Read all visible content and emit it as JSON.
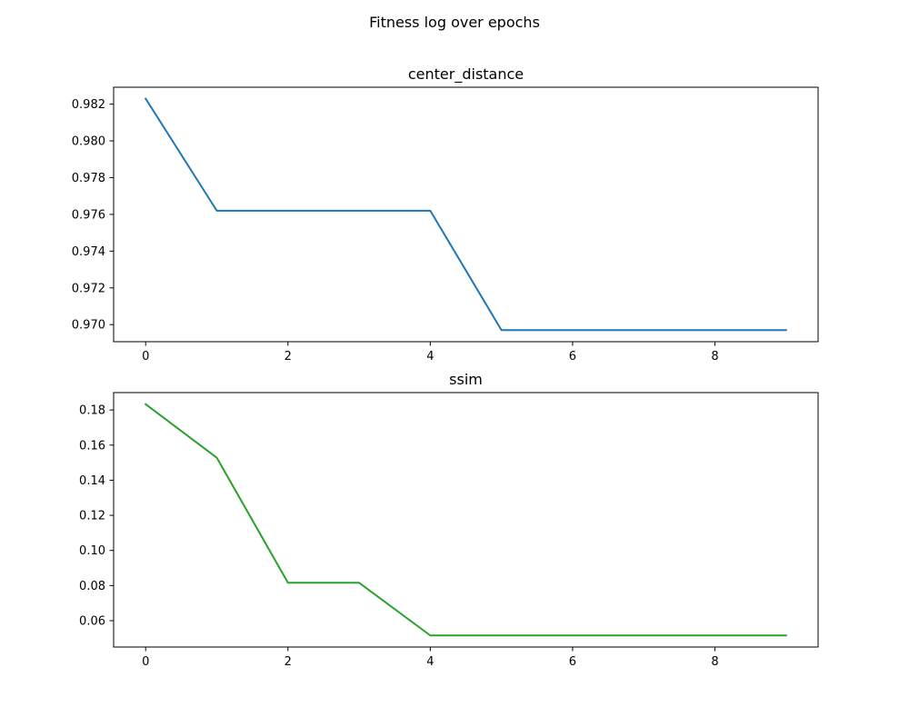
{
  "figure": {
    "title": "Fitness log over epochs"
  },
  "chart_data": [
    {
      "type": "line",
      "title": "center_distance",
      "xlabel": "",
      "ylabel": "",
      "x": [
        0,
        1,
        2,
        3,
        4,
        5,
        6,
        7,
        8,
        9
      ],
      "series": [
        {
          "color": "#1f77b4",
          "values": [
            0.9823,
            0.9762,
            0.9762,
            0.9762,
            0.9762,
            0.9697,
            0.9697,
            0.9697,
            0.9697,
            0.9697
          ]
        }
      ],
      "xlim": [
        -0.45,
        9.45
      ],
      "ylim": [
        0.96907,
        0.98292
      ],
      "xticks": [
        0,
        2,
        4,
        6,
        8
      ],
      "yticks": [
        0.97,
        0.972,
        0.974,
        0.976,
        0.978,
        0.98,
        0.982
      ],
      "xtick_labels": [
        "0",
        "2",
        "4",
        "6",
        "8"
      ],
      "ytick_labels": [
        "0.970",
        "0.972",
        "0.974",
        "0.976",
        "0.978",
        "0.980",
        "0.982"
      ],
      "grid": false,
      "legend": "none"
    },
    {
      "type": "line",
      "title": "ssim",
      "xlabel": "",
      "ylabel": "",
      "x": [
        0,
        1,
        2,
        3,
        4,
        5,
        6,
        7,
        8,
        9
      ],
      "series": [
        {
          "color": "#2ca02c",
          "values": [
            0.1833,
            0.1528,
            0.0816,
            0.0816,
            0.0516,
            0.0516,
            0.0516,
            0.0516,
            0.0516,
            0.0516
          ]
        }
      ],
      "xlim": [
        -0.45,
        9.45
      ],
      "ylim": [
        0.045,
        0.1899
      ],
      "xticks": [
        0,
        2,
        4,
        6,
        8
      ],
      "yticks": [
        0.06,
        0.08,
        0.1,
        0.12,
        0.14,
        0.16,
        0.18
      ],
      "xtick_labels": [
        "0",
        "2",
        "4",
        "6",
        "8"
      ],
      "ytick_labels": [
        "0.06",
        "0.08",
        "0.10",
        "0.12",
        "0.14",
        "0.16",
        "0.18"
      ],
      "grid": false,
      "legend": "none"
    }
  ]
}
